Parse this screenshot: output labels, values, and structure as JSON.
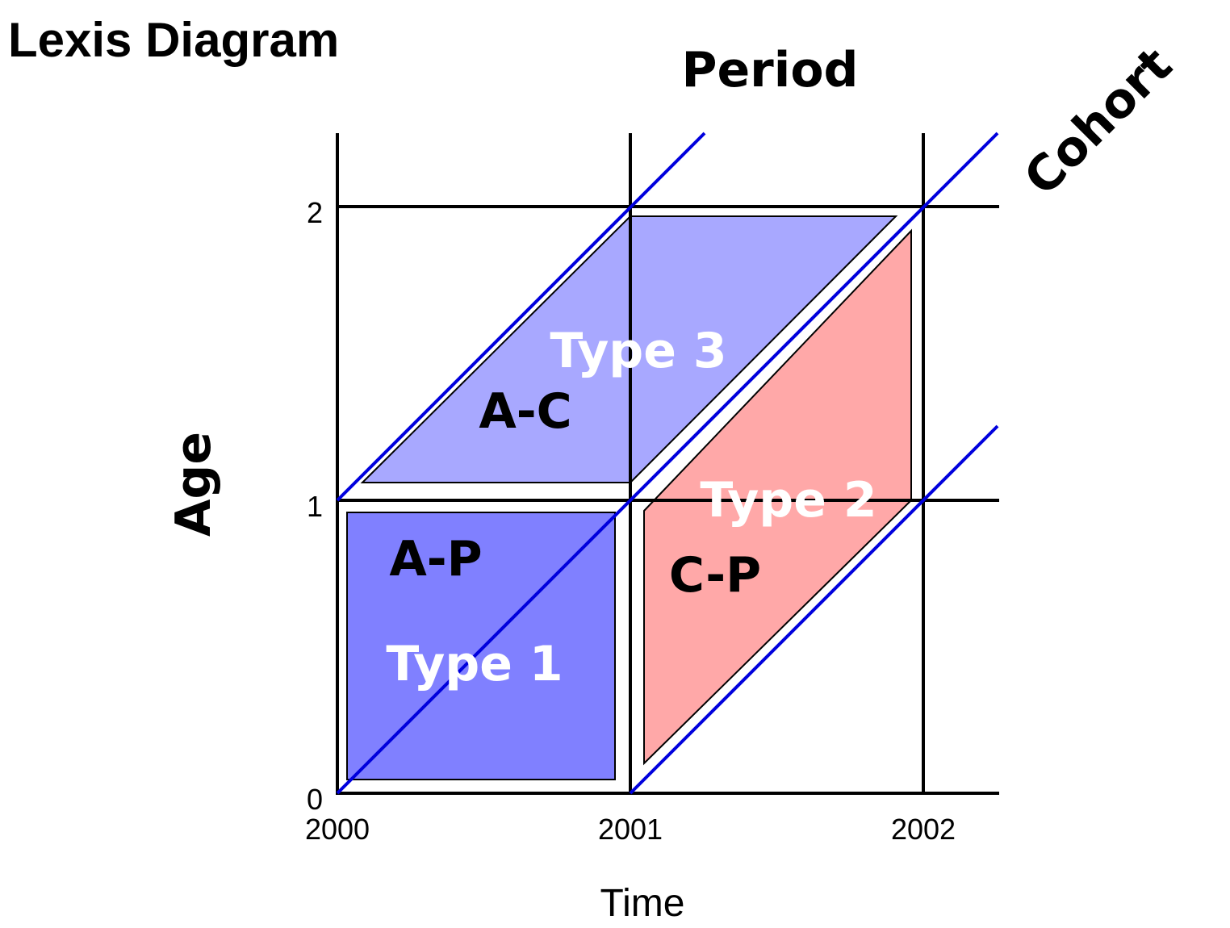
{
  "title": "Lexis Diagram",
  "axes": {
    "period_label": "Period",
    "cohort_label": "Cohort",
    "age_label": "Age",
    "time_label": "Time",
    "x_ticks": [
      "2000",
      "2001",
      "2002"
    ],
    "y_ticks": [
      "0",
      "1",
      "2"
    ]
  },
  "regions": {
    "type1": {
      "label": "Type 1",
      "abbr": "A-P",
      "color": "#8080ff"
    },
    "type2": {
      "label": "Type 2",
      "abbr": "C-P",
      "color": "#ffa8a8"
    },
    "type3": {
      "label": "Type 3",
      "abbr": "A-C",
      "color": "#a8a8ff"
    }
  },
  "colors": {
    "grid": "#000000",
    "cohort_lines": "#0000dd",
    "region_label": "#ffffff",
    "abbr_label": "#000000"
  }
}
